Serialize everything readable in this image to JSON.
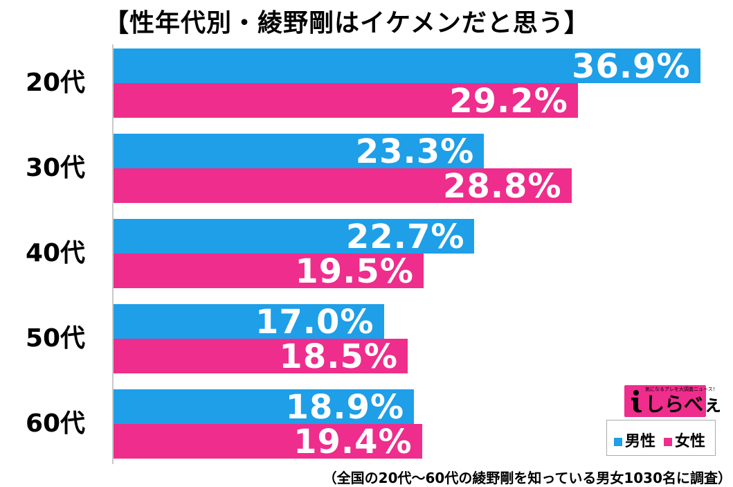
{
  "chart_data": {
    "type": "bar",
    "orientation": "horizontal",
    "title": "【性年代別・綾野剛はイケメンだと思う】",
    "categories": [
      "20代",
      "30代",
      "40代",
      "50代",
      "60代"
    ],
    "series": [
      {
        "name": "男性",
        "color": "#1e9fe8",
        "values": [
          36.9,
          23.3,
          22.7,
          17.0,
          18.9
        ],
        "labels": [
          "36.9%",
          "23.3%",
          "22.7%",
          "17.0%",
          "18.9%"
        ]
      },
      {
        "name": "女性",
        "color": "#ee2d8c",
        "values": [
          29.2,
          28.8,
          19.5,
          18.5,
          19.4
        ],
        "labels": [
          "29.2%",
          "28.8%",
          "19.5%",
          "18.5%",
          "19.4%"
        ]
      }
    ],
    "xlim": [
      0,
      37.7
    ],
    "legend_position": "bottom-right"
  },
  "logo": {
    "name": "しらべぇ",
    "tagline": "気になるアレを大調査ニュース！"
  },
  "footnote": "（全国の20代～60代の綾野剛を知っている男女1030名に調査）"
}
